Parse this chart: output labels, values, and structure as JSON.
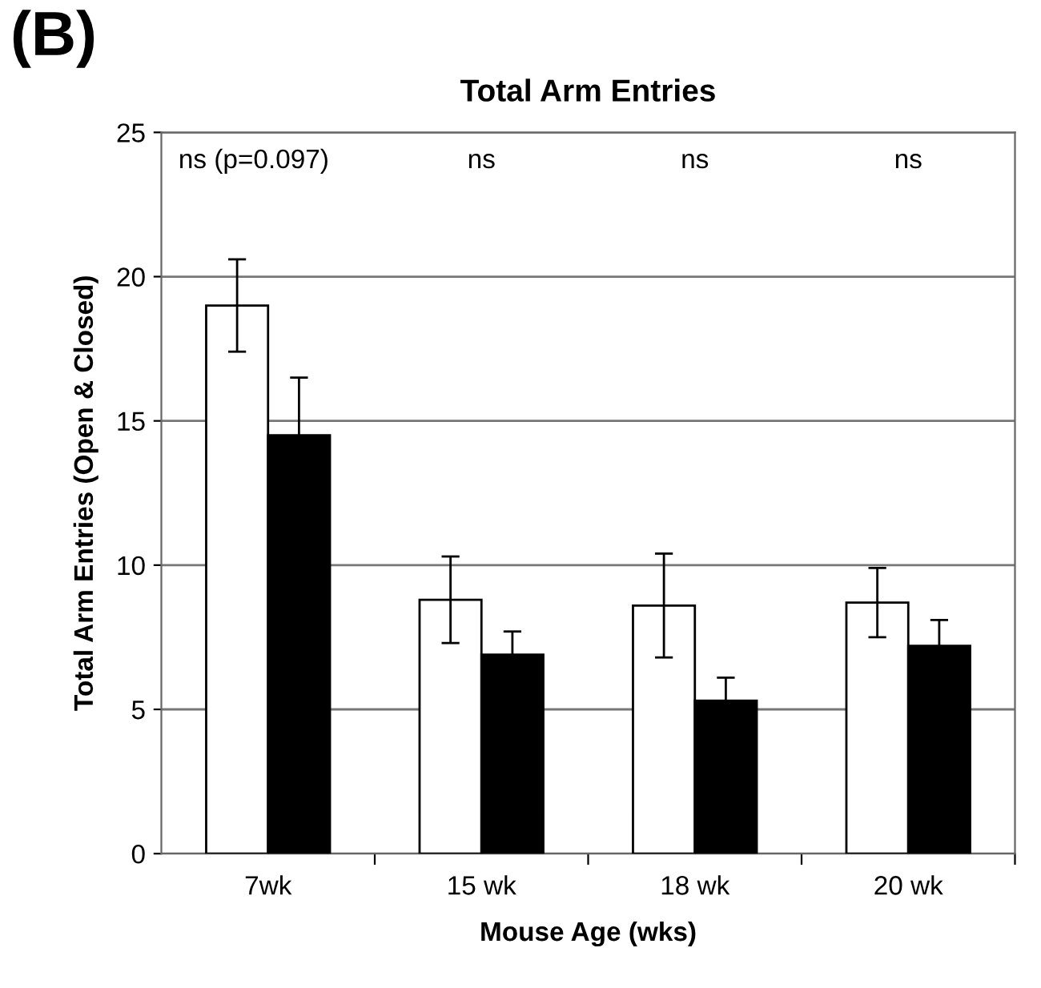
{
  "chart_data": {
    "type": "bar",
    "title": "Total Arm Entries",
    "xlabel": "Mouse Age (wks)",
    "ylabel": "Total Arm Entries (Open & Closed)",
    "categories": [
      "7wk",
      "15 wk",
      "18 wk",
      "20 wk"
    ],
    "series": [
      {
        "color": "#ffffff",
        "values": [
          19.0,
          8.8,
          8.6,
          8.7
        ],
        "errors": [
          1.6,
          1.5,
          1.8,
          1.2
        ]
      },
      {
        "color": "#000000",
        "values": [
          14.5,
          6.9,
          5.3,
          7.2
        ],
        "errors": [
          2.0,
          0.8,
          0.8,
          0.9
        ]
      }
    ],
    "ylim": [
      0,
      25
    ],
    "yticks": [
      0,
      5,
      10,
      15,
      20,
      25
    ],
    "grid": "y",
    "legend": false,
    "annotations": [
      "(B)",
      "ns (p=0.097)",
      "ns",
      "ns",
      "ns"
    ]
  }
}
